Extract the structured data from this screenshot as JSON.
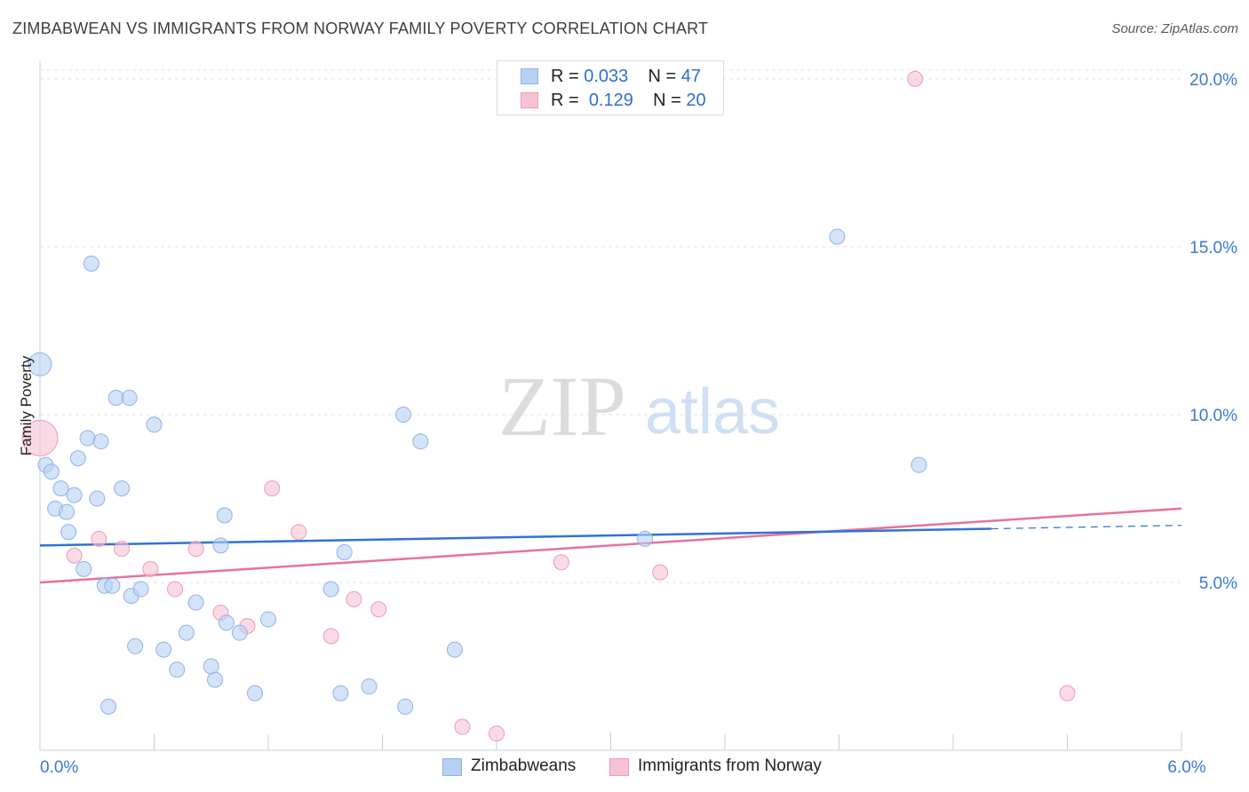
{
  "header": {
    "title": "ZIMBABWEAN VS IMMIGRANTS FROM NORWAY FAMILY POVERTY CORRELATION CHART",
    "source": "Source: ZipAtlas.com"
  },
  "watermark": {
    "zip": "ZIP",
    "atlas": "atlas"
  },
  "colors": {
    "blue_fill": "#b7d1f3",
    "blue_stroke": "#8fb3e6",
    "blue_line": "#2f73d4",
    "pink_fill": "#f6c3d4",
    "pink_stroke": "#ef9ab6",
    "pink_line": "#e8729b",
    "tick_text": "#3a78d0",
    "grid": "#dfe2e6"
  },
  "stats_legend": [
    {
      "r_label": "R =",
      "r_value": "0.033",
      "n_label": "N =",
      "n_value": "47"
    },
    {
      "r_label": "R =",
      "r_value": "0.129",
      "n_label": "N =",
      "n_value": "20"
    }
  ],
  "bottom_legend": [
    "Zimbabweans",
    "Immigrants from Norway"
  ],
  "chart_data": {
    "type": "scatter",
    "title": "ZIMBABWEAN VS IMMIGRANTS FROM NORWAY FAMILY POVERTY CORRELATION CHART",
    "xlabel": "",
    "ylabel": "Family Poverty",
    "xlim": [
      0,
      6
    ],
    "ylim": [
      0,
      20.5
    ],
    "x_tick_labels": [
      {
        "value": 0,
        "label": "0.0%"
      },
      {
        "value": 6,
        "label": "6.0%"
      }
    ],
    "y_ticks": [
      {
        "value": 5,
        "label": "5.0%"
      },
      {
        "value": 10,
        "label": "10.0%"
      },
      {
        "value": 15,
        "label": "15.0%"
      },
      {
        "value": 20,
        "label": "20.0%"
      }
    ],
    "series": [
      {
        "name": "Zimbabweans",
        "r": 0.033,
        "n": 47,
        "trend": {
          "x": [
            0,
            5.0
          ],
          "y": [
            6.1,
            6.6
          ],
          "dashed_to": [
            6.0,
            6.7
          ]
        },
        "points": [
          {
            "x": 0.0,
            "y": 11.5,
            "big": true
          },
          {
            "x": 0.03,
            "y": 8.5
          },
          {
            "x": 0.06,
            "y": 8.3
          },
          {
            "x": 0.08,
            "y": 7.2
          },
          {
            "x": 0.11,
            "y": 7.8
          },
          {
            "x": 0.14,
            "y": 7.1
          },
          {
            "x": 0.15,
            "y": 6.5
          },
          {
            "x": 0.18,
            "y": 7.6
          },
          {
            "x": 0.2,
            "y": 8.7
          },
          {
            "x": 0.23,
            "y": 5.4
          },
          {
            "x": 0.25,
            "y": 9.3
          },
          {
            "x": 0.27,
            "y": 14.5
          },
          {
            "x": 0.3,
            "y": 7.5
          },
          {
            "x": 0.32,
            "y": 9.2
          },
          {
            "x": 0.34,
            "y": 4.9
          },
          {
            "x": 0.36,
            "y": 1.3
          },
          {
            "x": 0.38,
            "y": 4.9
          },
          {
            "x": 0.4,
            "y": 10.5
          },
          {
            "x": 0.43,
            "y": 7.8
          },
          {
            "x": 0.47,
            "y": 10.5
          },
          {
            "x": 0.48,
            "y": 4.6
          },
          {
            "x": 0.5,
            "y": 3.1
          },
          {
            "x": 0.53,
            "y": 4.8
          },
          {
            "x": 0.6,
            "y": 9.7
          },
          {
            "x": 0.65,
            "y": 3.0
          },
          {
            "x": 0.72,
            "y": 2.4
          },
          {
            "x": 0.77,
            "y": 3.5
          },
          {
            "x": 0.82,
            "y": 4.4
          },
          {
            "x": 0.9,
            "y": 2.5
          },
          {
            "x": 0.92,
            "y": 2.1
          },
          {
            "x": 0.95,
            "y": 6.1
          },
          {
            "x": 0.97,
            "y": 7.0
          },
          {
            "x": 0.98,
            "y": 3.8
          },
          {
            "x": 1.05,
            "y": 3.5
          },
          {
            "x": 1.13,
            "y": 1.7
          },
          {
            "x": 1.2,
            "y": 3.9
          },
          {
            "x": 1.53,
            "y": 4.8
          },
          {
            "x": 1.58,
            "y": 1.7
          },
          {
            "x": 1.6,
            "y": 5.9
          },
          {
            "x": 1.73,
            "y": 1.9
          },
          {
            "x": 1.92,
            "y": 1.3
          },
          {
            "x": 1.91,
            "y": 10.0
          },
          {
            "x": 2.0,
            "y": 9.2
          },
          {
            "x": 2.18,
            "y": 3.0
          },
          {
            "x": 3.18,
            "y": 6.3
          },
          {
            "x": 4.19,
            "y": 15.3
          },
          {
            "x": 4.62,
            "y": 8.5
          }
        ]
      },
      {
        "name": "Immigrants from Norway",
        "r": 0.129,
        "n": 20,
        "trend": {
          "x": [
            0,
            6.0
          ],
          "y": [
            5.0,
            7.2
          ]
        },
        "points": [
          {
            "x": 0.0,
            "y": 9.3,
            "big": true
          },
          {
            "x": 0.18,
            "y": 5.8
          },
          {
            "x": 0.31,
            "y": 6.3
          },
          {
            "x": 0.43,
            "y": 6.0
          },
          {
            "x": 0.58,
            "y": 5.4
          },
          {
            "x": 0.71,
            "y": 4.8
          },
          {
            "x": 0.82,
            "y": 6.0
          },
          {
            "x": 0.95,
            "y": 4.1
          },
          {
            "x": 1.09,
            "y": 3.7
          },
          {
            "x": 1.22,
            "y": 7.8
          },
          {
            "x": 1.36,
            "y": 6.5
          },
          {
            "x": 1.53,
            "y": 3.4
          },
          {
            "x": 1.65,
            "y": 4.5
          },
          {
            "x": 1.78,
            "y": 4.2
          },
          {
            "x": 2.22,
            "y": 0.7
          },
          {
            "x": 2.4,
            "y": 0.5
          },
          {
            "x": 2.74,
            "y": 5.6
          },
          {
            "x": 3.26,
            "y": 5.3
          },
          {
            "x": 4.6,
            "y": 20.0
          },
          {
            "x": 5.4,
            "y": 1.7
          }
        ]
      }
    ]
  }
}
